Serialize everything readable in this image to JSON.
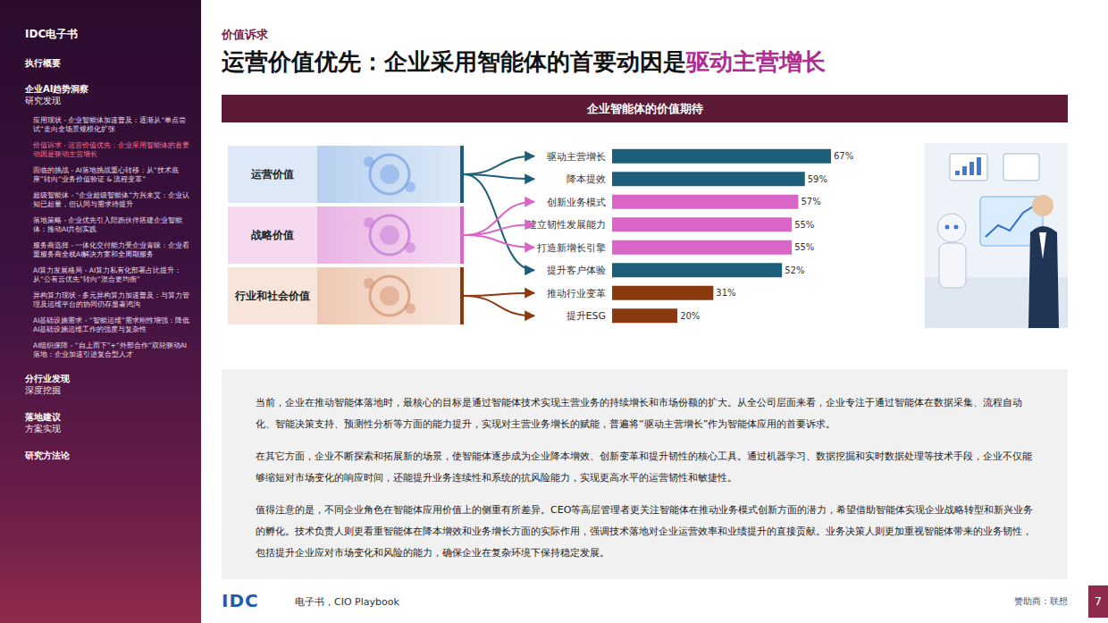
{
  "sidebar": {
    "brand": "IDC电子书",
    "sections": [
      {
        "title": "执行概要"
      },
      {
        "title": "企业AI趋势洞察",
        "subtitle": "研究发现",
        "items": [
          {
            "text": "应用现状 - 企业智能体加速普及：逐渐从“单点尝试”走向全场景规模化扩张"
          },
          {
            "text": "价值诉求 - 运营价值优先：企业采用智能体的首要动因是驱动主营增长",
            "active": true
          },
          {
            "text": "面临的挑战 - AI落地挑战重心转移：从“技术底座”转向“业务价值验证 & 流程变革”"
          },
          {
            "text": "超级智能体 - “企业超级智能体”方兴未艾：企业认知已起量，但认同与需求待提升"
          },
          {
            "text": "落地策略 - 企业优先引入陪跑伙伴搭建企业智能体：推动AI共创实践"
          },
          {
            "text": "服务商选择 - 一体化交付能力受企业青睐：企业看重服务商全栈AI解决方案和全周期服务"
          },
          {
            "text": "AI算力发展格局 - AI算力私有化部署占比提升：从“公有云优先”转向“混合更均衡”"
          },
          {
            "text": "异构算力现状 - 多元异构算力加速普及：与算力管理及运维平台的协同仍存显著鸿沟"
          },
          {
            "text": "AI基础设施需求 - “智能运维”需求刚性增强：降低AI基础设施运维工作的强度与复杂性"
          },
          {
            "text": "AI组织保障 - “自上而下”+“外部合作”双轮驱动AI落地：企业加速引进复合型人才"
          }
        ]
      },
      {
        "title": "分行业发现",
        "subtitle": "深度挖掘"
      },
      {
        "title": "落地建议",
        "subtitle": "方案实现"
      },
      {
        "title": "研究方法论"
      }
    ]
  },
  "header": {
    "kicker": "价值诉求",
    "title": "运营价值优先：企业采用智能体的首要动因是",
    "title_highlight": "驱动主营增长",
    "banner": "企业智能体的价值期待"
  },
  "groups": [
    {
      "label": "运营价值",
      "color": "#1d5f7a",
      "members": [
        "驱动主营增长",
        "降本提效",
        "提升客户体验"
      ]
    },
    {
      "label": "战略价值",
      "color": "#d966c6",
      "members": [
        "创新业务模式",
        "建立韧性发展能力",
        "打造新增长引擎"
      ]
    },
    {
      "label": "行业和社会价值",
      "color": "#8b3a0f",
      "members": [
        "推动行业变革",
        "提升ESG"
      ]
    }
  ],
  "chart_data": {
    "type": "bar",
    "orientation": "horizontal",
    "categories": [
      "驱动主营增长",
      "降本提效",
      "创新业务模式",
      "建立韧性发展能力",
      "打造新增长引擎",
      "提升客户体验",
      "推动行业变革",
      "提升ESG"
    ],
    "values": [
      67,
      59,
      57,
      55,
      55,
      52,
      31,
      20
    ],
    "value_labels": [
      "67%",
      "59%",
      "57%",
      "55%",
      "55%",
      "52%",
      "31%",
      "20%"
    ],
    "colors": [
      "#1d5f7a",
      "#1d5f7a",
      "#d966c6",
      "#d966c6",
      "#d966c6",
      "#1d5f7a",
      "#8b3a0f",
      "#8b3a0f"
    ],
    "data_labels": true,
    "tick_labels": "y",
    "grid": false
  },
  "paragraphs": [
    "当前，企业在推动智能体落地时，最核心的目标是通过智能体技术实现主营业务的持续增长和市场份额的扩大。从全公司层面来看，企业专注于通过智能体在数据采集、流程自动化、智能决策支持、预测性分析等方面的能力提升，实现对主营业务增长的赋能，普遍将“驱动主营增长”作为智能体应用的首要诉求。",
    "在其它方面，企业不断探索和拓展新的场景，使智能体逐步成为企业降本增效、创新变革和提升韧性的核心工具。通过机器学习、数据挖掘和实时数据处理等技术手段，企业不仅能够缩短对市场变化的响应时间，还能提升业务连续性和系统的抗风险能力，实现更高水平的运营韧性和敏捷性。",
    "值得注意的是，不同企业角色在智能体应用价值上的侧重有所差异。CEO等高层管理者更关注智能体在推动业务模式创新方面的潜力，希望借助智能体实现企业战略转型和新兴业务的孵化。技术负责人则更看重智能体在降本增效和业务增长方面的实际作用，强调技术落地对企业运营效率和业绩提升的直接贡献。业务决策人则更加重视智能体带来的业务韧性，包括提升企业应对市场变化和风险的能力，确保企业在复杂环境下保持稳定发展。"
  ],
  "footer": {
    "logo": "IDC",
    "publication": "电子书，CIO Playbook",
    "sponsor": "赞助商：联想",
    "page": "7"
  }
}
